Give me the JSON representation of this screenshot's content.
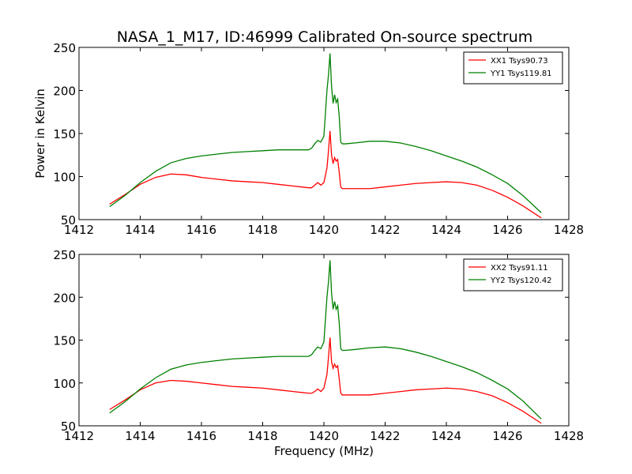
{
  "figure": {
    "title": "NASA_1_M17, ID:46999 Calibrated On-source spectrum",
    "xlabel": "Frequency (MHz)",
    "ylabel": "Power in Kelvin"
  },
  "chart_data": [
    {
      "type": "line",
      "title": "NASA_1_M17, ID:46999 Calibrated On-source spectrum",
      "xlabel": "",
      "ylabel": "Power in Kelvin",
      "xlim": [
        1412,
        1428
      ],
      "ylim": [
        50,
        250
      ],
      "xticks": [
        1412,
        1414,
        1416,
        1418,
        1420,
        1422,
        1424,
        1426,
        1428
      ],
      "yticks": [
        50,
        100,
        150,
        200,
        250
      ],
      "grid": false,
      "legend_position": "top-right",
      "series": [
        {
          "name": "XX1 Tsys90.73",
          "color": "#ff0000",
          "x": [
            1413.0,
            1413.5,
            1414.0,
            1414.5,
            1415.0,
            1415.5,
            1416.0,
            1416.5,
            1417.0,
            1417.5,
            1418.0,
            1418.5,
            1419.0,
            1419.5,
            1419.6,
            1419.7,
            1419.8,
            1419.9,
            1420.0,
            1420.1,
            1420.15,
            1420.2,
            1420.25,
            1420.3,
            1420.35,
            1420.4,
            1420.45,
            1420.5,
            1420.55,
            1420.6,
            1420.7,
            1421.0,
            1421.5,
            1422.0,
            1422.5,
            1423.0,
            1423.5,
            1424.0,
            1424.5,
            1425.0,
            1425.5,
            1426.0,
            1426.5,
            1427.1
          ],
          "y": [
            68,
            79,
            91,
            99,
            103,
            102,
            99,
            97,
            95,
            94,
            93,
            91,
            89,
            87,
            87,
            90,
            93,
            90,
            93,
            110,
            130,
            153,
            125,
            115,
            122,
            118,
            120,
            105,
            88,
            86,
            86,
            86,
            86,
            88,
            90,
            92,
            93,
            94,
            93,
            90,
            84,
            76,
            66,
            52
          ]
        },
        {
          "name": "YY1 Tsys119.81",
          "color": "#008000",
          "x": [
            1413.0,
            1413.5,
            1414.0,
            1414.5,
            1415.0,
            1415.5,
            1416.0,
            1416.5,
            1417.0,
            1417.5,
            1418.0,
            1418.5,
            1419.0,
            1419.5,
            1419.6,
            1419.7,
            1419.8,
            1419.9,
            1420.0,
            1420.1,
            1420.15,
            1420.2,
            1420.25,
            1420.3,
            1420.35,
            1420.4,
            1420.45,
            1420.5,
            1420.55,
            1420.6,
            1420.7,
            1421.0,
            1421.5,
            1422.0,
            1422.5,
            1423.0,
            1423.5,
            1424.0,
            1424.5,
            1425.0,
            1425.5,
            1426.0,
            1426.5,
            1427.1
          ],
          "y": [
            65,
            78,
            93,
            106,
            116,
            121,
            124,
            126,
            128,
            129,
            130,
            131,
            131,
            131,
            133,
            138,
            142,
            140,
            147,
            200,
            218,
            243,
            205,
            185,
            195,
            186,
            190,
            170,
            140,
            138,
            138,
            139,
            141,
            141,
            139,
            135,
            130,
            124,
            118,
            111,
            102,
            92,
            78,
            58
          ]
        }
      ]
    },
    {
      "type": "line",
      "title": "",
      "xlabel": "Frequency (MHz)",
      "ylabel": "",
      "xlim": [
        1412,
        1428
      ],
      "ylim": [
        50,
        250
      ],
      "xticks": [
        1412,
        1414,
        1416,
        1418,
        1420,
        1422,
        1424,
        1426,
        1428
      ],
      "yticks": [
        50,
        100,
        150,
        200,
        250
      ],
      "grid": false,
      "legend_position": "top-right",
      "series": [
        {
          "name": "XX2 Tsys91.11",
          "color": "#ff0000",
          "x": [
            1413.0,
            1413.5,
            1414.0,
            1414.5,
            1415.0,
            1415.5,
            1416.0,
            1416.5,
            1417.0,
            1417.5,
            1418.0,
            1418.5,
            1419.0,
            1419.5,
            1419.6,
            1419.7,
            1419.8,
            1419.9,
            1420.0,
            1420.1,
            1420.15,
            1420.2,
            1420.25,
            1420.3,
            1420.35,
            1420.4,
            1420.45,
            1420.5,
            1420.55,
            1420.6,
            1420.7,
            1421.0,
            1421.5,
            1422.0,
            1422.5,
            1423.0,
            1423.5,
            1424.0,
            1424.5,
            1425.0,
            1425.5,
            1426.0,
            1426.5,
            1427.1
          ],
          "y": [
            69,
            80,
            92,
            100,
            103,
            102,
            100,
            98,
            96,
            95,
            94,
            92,
            90,
            88,
            88,
            90,
            93,
            90,
            94,
            110,
            130,
            153,
            125,
            117,
            122,
            118,
            120,
            105,
            88,
            86,
            86,
            86,
            86,
            88,
            90,
            92,
            93,
            94,
            93,
            90,
            85,
            77,
            67,
            53
          ]
        },
        {
          "name": "YY2 Tsys120.42",
          "color": "#008000",
          "x": [
            1413.0,
            1413.5,
            1414.0,
            1414.5,
            1415.0,
            1415.5,
            1416.0,
            1416.5,
            1417.0,
            1417.5,
            1418.0,
            1418.5,
            1419.0,
            1419.5,
            1419.6,
            1419.7,
            1419.8,
            1419.9,
            1420.0,
            1420.1,
            1420.15,
            1420.2,
            1420.25,
            1420.3,
            1420.35,
            1420.4,
            1420.45,
            1420.5,
            1420.55,
            1420.6,
            1420.7,
            1421.0,
            1421.5,
            1422.0,
            1422.5,
            1423.0,
            1423.5,
            1424.0,
            1424.5,
            1425.0,
            1425.5,
            1426.0,
            1426.5,
            1427.1
          ],
          "y": [
            65,
            78,
            93,
            106,
            116,
            121,
            124,
            126,
            128,
            129,
            130,
            131,
            131,
            131,
            133,
            138,
            142,
            140,
            148,
            200,
            218,
            243,
            205,
            186,
            195,
            186,
            190,
            170,
            140,
            138,
            138,
            139,
            141,
            142,
            140,
            136,
            131,
            125,
            119,
            112,
            103,
            93,
            79,
            58
          ]
        }
      ]
    }
  ]
}
